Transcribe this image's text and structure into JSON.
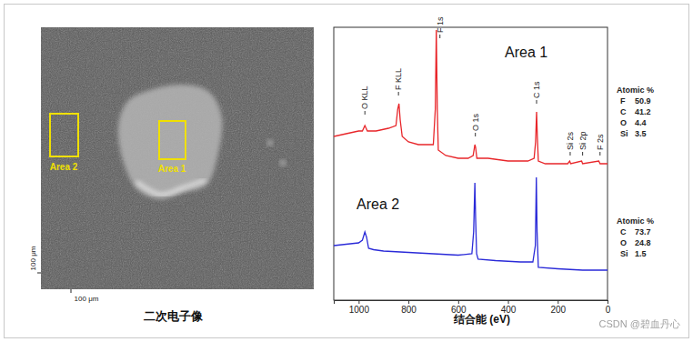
{
  "image": {
    "caption": "二次电子像",
    "scale_labels": [
      "100 μm",
      "100 μm"
    ],
    "regions": [
      "Area 2",
      "Area 1"
    ]
  },
  "watermark": "CSDN @碧血丹心",
  "chart_data": {
    "type": "line",
    "xlabel": "结合能 (eV)",
    "xlim": [
      1100,
      0
    ],
    "xticks": [
      1000,
      800,
      600,
      400,
      200,
      0
    ],
    "ylim": [
      0,
      100
    ],
    "tick_labels": "x",
    "series": [
      {
        "name": "Area 1",
        "color": "#e8262a",
        "x": [
          1100,
          1050,
          1000,
          985,
          975,
          965,
          930,
          880,
          850,
          843,
          838,
          833,
          825,
          800,
          760,
          720,
          700,
          692,
          688,
          684,
          680,
          650,
          600,
          560,
          540,
          533,
          530,
          525,
          480,
          400,
          320,
          295,
          289,
          285,
          282,
          278,
          250,
          200,
          160,
          152,
          148,
          104,
          100,
          35,
          30,
          0
        ],
        "values": [
          60,
          61,
          62,
          62,
          64,
          62,
          62,
          63,
          64,
          70,
          72,
          66,
          60,
          58,
          57,
          57,
          57,
          70,
          99,
          70,
          55,
          53,
          52,
          52,
          53,
          57,
          56,
          52,
          52,
          51,
          51,
          52,
          58,
          69,
          60,
          51,
          50,
          50,
          50,
          51,
          50,
          51,
          50,
          51,
          50,
          50
        ]
      },
      {
        "name": "Area 2",
        "color": "#2a2ad8",
        "x": [
          1100,
          1050,
          1000,
          985,
          975,
          968,
          960,
          940,
          900,
          800,
          700,
          600,
          545,
          538,
          533,
          530,
          526,
          520,
          450,
          350,
          300,
          290,
          286,
          283,
          278,
          200,
          100,
          0
        ],
        "values": [
          20,
          20.5,
          21,
          22,
          25,
          23,
          19,
          18.5,
          18,
          17.5,
          17,
          16.5,
          17,
          25,
          43,
          30,
          17,
          15,
          14.5,
          14,
          14,
          20,
          45,
          25,
          12,
          11.5,
          11,
          11
        ]
      }
    ],
    "annotations": [
      {
        "text": "O KLL",
        "x": 975,
        "y": 68
      },
      {
        "text": "F KLL",
        "x": 840,
        "y": 75
      },
      {
        "text": "F 1s",
        "x": 688,
        "y": 96
      },
      {
        "text": "O 1s",
        "x": 531,
        "y": 60
      },
      {
        "text": "C 1s",
        "x": 285,
        "y": 72
      },
      {
        "text": "Si 2s",
        "x": 150,
        "y": 53
      },
      {
        "text": "Si 2p",
        "x": 100,
        "y": 53
      },
      {
        "text": "F 2s",
        "x": 30,
        "y": 53
      }
    ],
    "composition": [
      {
        "title": "Atomic %",
        "elements": [
          "F",
          "C",
          "O",
          "Si"
        ],
        "values": [
          50.9,
          41.2,
          4.4,
          3.5
        ]
      },
      {
        "title": "Atomic %",
        "elements": [
          "C",
          "O",
          "Si"
        ],
        "values": [
          73.7,
          24.8,
          1.5
        ]
      }
    ]
  }
}
